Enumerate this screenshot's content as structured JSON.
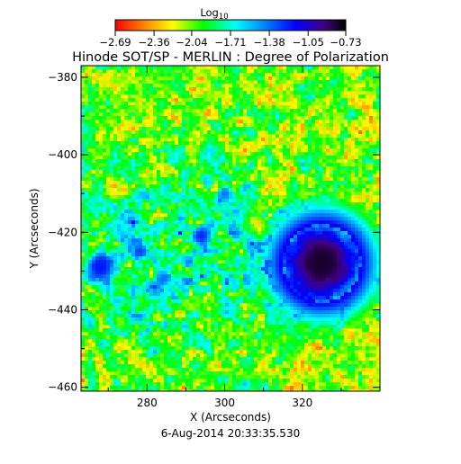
{
  "chart_data": {
    "type": "heatmap",
    "title": "Hinode SOT/SP - MERLIN : Degree of Polarization",
    "xlabel": "X (Arcseconds)",
    "ylabel": "Y (Arcseconds)",
    "footer": "6-Aug-2014 20:33:35.530",
    "xlim": [
      263,
      340
    ],
    "ylim": [
      -461,
      -377
    ],
    "x_ticks": [
      280,
      300,
      320
    ],
    "y_ticks": [
      -380,
      -400,
      -420,
      -440,
      -460
    ],
    "colorbar": {
      "label_main": "Log",
      "label_sub": "10",
      "ticks": [
        -2.69,
        -2.36,
        -2.04,
        -1.71,
        -1.38,
        -1.05,
        -0.73
      ],
      "tick_labels": [
        "−2.69",
        "−2.36",
        "−2.04",
        "−1.71",
        "−1.38",
        "−1.05",
        "−0.73"
      ],
      "range": [
        -2.69,
        -0.73
      ],
      "colormap": [
        "#ff0000",
        "#ff8000",
        "#ffff00",
        "#00ff00",
        "#00ffff",
        "#0080ff",
        "#0000ff",
        "#400080",
        "#000000"
      ]
    },
    "features": [
      {
        "name": "sunspot",
        "x": 325,
        "y": -428,
        "radius": 10,
        "value": -0.8
      },
      {
        "name": "pore",
        "x": 268,
        "y": -429,
        "radius": 4,
        "value": -1.2
      },
      {
        "name": "pore",
        "x": 294,
        "y": -421,
        "radius": 2.5,
        "value": -1.25
      },
      {
        "name": "pore",
        "x": 278,
        "y": -425,
        "radius": 2,
        "value": -1.3
      },
      {
        "name": "pore",
        "x": 300,
        "y": -410,
        "radius": 2,
        "value": -1.4
      },
      {
        "name": "pore",
        "x": 284,
        "y": -432,
        "radius": 2,
        "value": -1.4
      }
    ]
  }
}
